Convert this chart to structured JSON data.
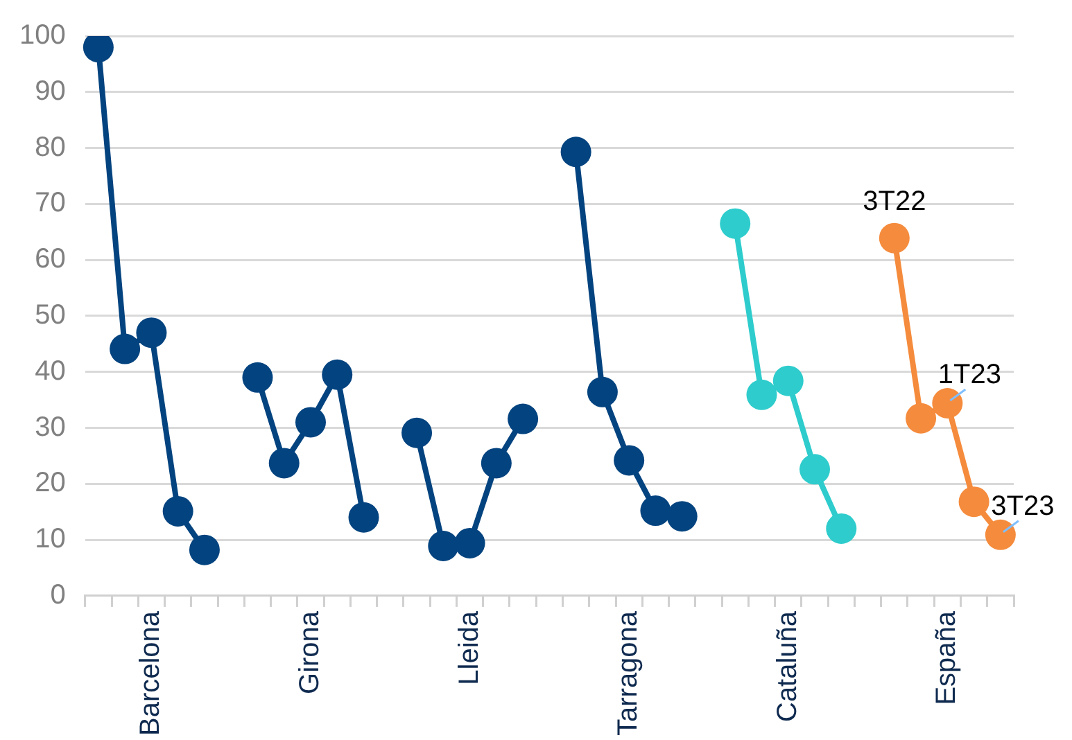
{
  "chart_data": {
    "type": "line",
    "categories": [
      null,
      null,
      "Barcelona",
      null,
      null,
      null,
      null,
      null,
      "Girona",
      null,
      null,
      null,
      null,
      null,
      "Lleida",
      null,
      null,
      null,
      null,
      null,
      "Tarragona",
      null,
      null,
      null,
      null,
      null,
      "Cataluña",
      null,
      null,
      null,
      null,
      null,
      "España",
      null,
      null
    ],
    "series": [
      {
        "color": "#03437f",
        "values": [
          98,
          44.1,
          47,
          15.1,
          8.2,
          null,
          39,
          23.7,
          31,
          39.5,
          14,
          null,
          29.1,
          8.9,
          9.4,
          23.7,
          31.6,
          null,
          79.3,
          36.4,
          24.2,
          15.2,
          14.2,
          null,
          null,
          null,
          null,
          null,
          null,
          null,
          null,
          null,
          null,
          null,
          null
        ]
      },
      {
        "color": "#2ecccc",
        "values": [
          null,
          null,
          null,
          null,
          null,
          null,
          null,
          null,
          null,
          null,
          null,
          null,
          null,
          null,
          null,
          null,
          null,
          null,
          null,
          null,
          null,
          null,
          null,
          null,
          66.5,
          35.9,
          38.4,
          22.6,
          12,
          null,
          null,
          null,
          null,
          null,
          null
        ]
      },
      {
        "color": "#f58b3c",
        "values": [
          null,
          null,
          null,
          null,
          null,
          null,
          null,
          null,
          null,
          null,
          null,
          null,
          null,
          null,
          null,
          null,
          null,
          null,
          null,
          null,
          null,
          null,
          null,
          null,
          null,
          null,
          null,
          null,
          null,
          null,
          63.9,
          31.7,
          34.4,
          16.8,
          10.9
        ]
      }
    ],
    "annotations": [
      {
        "text": "3T22",
        "y": 63.9
      },
      {
        "text": "1T23",
        "y": 34.4
      },
      {
        "text": "3T23",
        "y": 10.9
      }
    ],
    "ylim": [
      0,
      100
    ],
    "yticks": [
      0,
      10,
      20,
      30,
      40,
      50,
      60,
      70,
      80,
      90,
      100
    ],
    "grid": "y",
    "legend": false,
    "marker": "circle",
    "line_style": "solid"
  }
}
